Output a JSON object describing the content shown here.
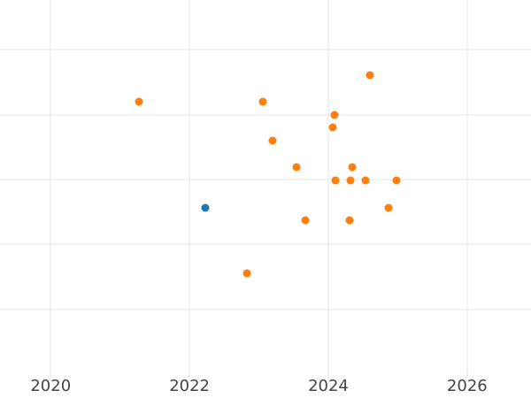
{
  "chart_data": {
    "type": "scatter",
    "title": "",
    "xlabel": "",
    "ylabel": "",
    "grid": true,
    "legend": false,
    "x_axis": {
      "ticks": [
        2020,
        2022,
        2024,
        2026
      ],
      "tick_labels": [
        "2020",
        "2022",
        "2024",
        "2026"
      ],
      "gridlines": [
        2020,
        2022,
        2024,
        2026
      ],
      "range": [
        2019.27,
        2026.92
      ]
    },
    "y_axis": {
      "ticks": [],
      "tick_labels": [],
      "gridlines": [
        1,
        2,
        3,
        4,
        5
      ],
      "range": [
        -0.37,
        5.77
      ]
    },
    "series": [
      {
        "name": "orange-series",
        "color": "#ff7f0e",
        "points": [
          [
            2021.27,
            4.2
          ],
          [
            2023.06,
            4.2
          ],
          [
            2024.6,
            4.61
          ],
          [
            2024.09,
            3.99
          ],
          [
            2024.06,
            3.8
          ],
          [
            2023.2,
            3.6
          ],
          [
            2023.54,
            3.19
          ],
          [
            2024.34,
            3.19
          ],
          [
            2024.1,
            2.98
          ],
          [
            2024.32,
            2.98
          ],
          [
            2024.53,
            2.98
          ],
          [
            2024.98,
            2.98
          ],
          [
            2024.87,
            2.57
          ],
          [
            2023.67,
            2.37
          ],
          [
            2024.31,
            2.37
          ],
          [
            2022.83,
            1.56
          ]
        ]
      },
      {
        "name": "blue-series",
        "color": "#1f77b4",
        "points": [
          [
            2022.23,
            2.57
          ]
        ]
      }
    ]
  },
  "style": {
    "background_color": "#ffffff",
    "gridline_color": "#e6e6e6",
    "tick_mark_color": "#d9d9d9",
    "tick_label_color": "#444444"
  }
}
